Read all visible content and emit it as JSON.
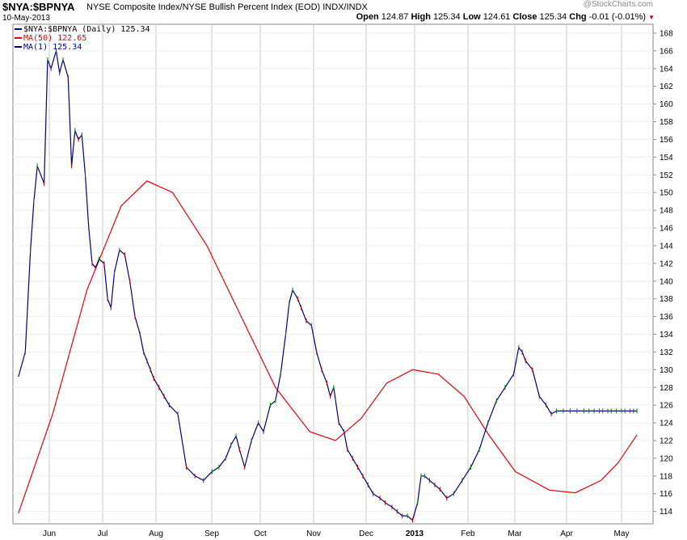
{
  "header": {
    "symbol": "$NYA:$BPNYA",
    "description": "NYSE Composite Index/NYSE Bullish Percent Index (EOD)  INDX/INDX",
    "date": "10-May-2013",
    "watermark": "@StockCharts.com",
    "open_label": "Open",
    "open": "124.87",
    "high_label": "High",
    "high": "125.34",
    "low_label": "Low",
    "low": "124.61",
    "close_label": "Close",
    "close": "125.34",
    "chg_label": "Chg",
    "chg": "-0.01 (-0.01%)"
  },
  "legend": {
    "price": "$NYA:$BPNYA (Daily) 125.34",
    "ma50": "MA(50) 122.65",
    "ma1": "MA(1) 125.34"
  },
  "colors": {
    "price": "#000080",
    "ma50": "#e8000b",
    "up_tick": "#008000",
    "down_tick": "#c00000",
    "grid": "#c8c8c8",
    "border": "#8a8a8a"
  },
  "chart_data": {
    "type": "line",
    "x_labels": [
      "Jun",
      "Jul",
      "Aug",
      "Sep",
      "Oct",
      "Nov",
      "Dec",
      "2013",
      "Feb",
      "Mar",
      "Apr",
      "May"
    ],
    "x_label_bold": "2013",
    "y_ticks": [
      114,
      116,
      118,
      120,
      122,
      124,
      126,
      128,
      130,
      132,
      134,
      136,
      138,
      140,
      142,
      144,
      146,
      148,
      150,
      152,
      154,
      156,
      158,
      160,
      162,
      164,
      166,
      168
    ],
    "ylim": [
      112.6,
      169.0
    ],
    "grid": true,
    "legend_position": "top-left",
    "series": [
      {
        "name": "$NYA:$BPNYA (Daily)",
        "x": [
          "2012-05-14",
          "2012-05-18",
          "2012-05-21",
          "2012-05-23",
          "2012-05-25",
          "2012-05-29",
          "2012-05-31",
          "2012-06-02",
          "2012-06-05",
          "2012-06-07",
          "2012-06-09",
          "2012-06-12",
          "2012-06-14",
          "2012-06-16",
          "2012-06-18",
          "2012-06-20",
          "2012-06-22",
          "2012-06-24",
          "2012-06-26",
          "2012-06-28",
          "2012-06-30",
          "2012-07-03",
          "2012-07-05",
          "2012-07-07",
          "2012-07-09",
          "2012-07-12",
          "2012-07-15",
          "2012-07-18",
          "2012-07-21",
          "2012-07-24",
          "2012-07-26",
          "2012-07-28",
          "2012-07-30",
          "2012-08-01",
          "2012-08-04",
          "2012-08-07",
          "2012-08-10",
          "2012-08-15",
          "2012-08-20",
          "2012-08-25",
          "2012-08-30",
          "2012-09-04",
          "2012-09-08",
          "2012-09-12",
          "2012-09-15",
          "2012-09-18",
          "2012-09-20",
          "2012-09-23",
          "2012-09-27",
          "2012-10-01",
          "2012-10-04",
          "2012-10-08",
          "2012-10-11",
          "2012-10-14",
          "2012-10-17",
          "2012-10-19",
          "2012-10-21",
          "2012-10-24",
          "2012-10-26",
          "2012-10-29",
          "2012-11-01",
          "2012-11-04",
          "2012-11-07",
          "2012-11-10",
          "2012-11-12",
          "2012-11-14",
          "2012-11-17",
          "2012-11-20",
          "2012-11-22",
          "2012-11-25",
          "2012-11-28",
          "2012-12-01",
          "2012-12-04",
          "2012-12-07",
          "2012-12-11",
          "2012-12-14",
          "2012-12-18",
          "2012-12-21",
          "2012-12-24",
          "2012-12-27",
          "2012-12-30",
          "2013-01-02",
          "2013-01-04",
          "2013-01-06",
          "2013-01-09",
          "2013-01-12",
          "2013-01-15",
          "2013-01-19",
          "2013-01-23",
          "2013-01-28",
          "2013-02-02",
          "2013-02-07",
          "2013-02-12",
          "2013-02-17",
          "2013-02-22",
          "2013-02-27",
          "2013-03-01",
          "2013-03-02",
          "2013-03-04",
          "2013-03-06",
          "2013-03-10",
          "2013-03-14",
          "2013-03-18",
          "2013-03-21",
          "2013-03-24",
          "2013-03-28",
          "2013-04-01",
          "2013-04-05",
          "2013-04-09",
          "2013-04-12",
          "2013-04-15",
          "2013-04-18",
          "2013-04-20",
          "2013-04-23",
          "2013-04-25",
          "2013-04-28",
          "2013-05-01",
          "2013-05-03",
          "2013-05-06",
          "2013-05-08",
          "2013-05-10"
        ],
        "values": [
          129.2,
          132.0,
          143.5,
          149.0,
          153.0,
          151.0,
          165.0,
          164.0,
          166.0,
          163.5,
          165.0,
          163.0,
          153.0,
          157.0,
          156.0,
          156.5,
          152.0,
          146.0,
          142.0,
          141.5,
          142.5,
          142.0,
          138.0,
          137.0,
          141.0,
          143.5,
          143.0,
          140.0,
          136.0,
          134.0,
          132.0,
          131.0,
          130.0,
          129.0,
          128.0,
          127.0,
          126.0,
          125.0,
          119.0,
          118.0,
          117.5,
          118.5,
          119.0,
          120.0,
          121.5,
          122.5,
          121.0,
          119.0,
          122.0,
          124.0,
          123.0,
          126.0,
          126.5,
          129.5,
          134.0,
          137.5,
          139.0,
          138.0,
          137.0,
          135.5,
          135.0,
          132.0,
          130.0,
          128.5,
          127.0,
          128.0,
          124.0,
          123.0,
          121.0,
          120.0,
          119.0,
          118.0,
          117.0,
          116.0,
          115.5,
          115.0,
          114.5,
          114.0,
          113.5,
          113.5,
          113.0,
          115.0,
          118.0,
          118.0,
          117.5,
          117.0,
          116.5,
          115.5,
          116.0,
          117.5,
          119.0,
          121.0,
          124.0,
          126.5,
          128.0,
          129.5,
          131.5,
          132.5,
          132.0,
          131.0,
          130.0,
          127.0,
          126.0,
          125.0,
          125.34,
          125.34,
          125.34,
          125.34,
          125.34,
          125.34,
          125.34,
          125.34,
          125.34,
          125.34,
          125.34,
          125.34,
          125.34,
          125.34,
          125.34,
          125.34,
          125.34
        ]
      },
      {
        "name": "MA(50)",
        "x": [
          "2012-05-14",
          "2012-06-03",
          "2012-06-23",
          "2012-07-13",
          "2012-07-28",
          "2012-08-12",
          "2012-09-01",
          "2012-09-21",
          "2012-10-11",
          "2012-10-31",
          "2012-11-15",
          "2012-11-30",
          "2012-12-15",
          "2012-12-30",
          "2013-01-14",
          "2013-01-29",
          "2013-02-13",
          "2013-02-28",
          "2013-03-20",
          "2013-04-04",
          "2013-04-19",
          "2013-04-29",
          "2013-05-10"
        ],
        "values": [
          113.8,
          125.0,
          139.0,
          148.5,
          151.3,
          150.0,
          144.0,
          136.0,
          128.0,
          123.0,
          122.0,
          124.5,
          128.5,
          130.0,
          129.5,
          127.0,
          122.5,
          118.5,
          116.4,
          116.1,
          117.5,
          119.5,
          122.65
        ]
      }
    ]
  }
}
